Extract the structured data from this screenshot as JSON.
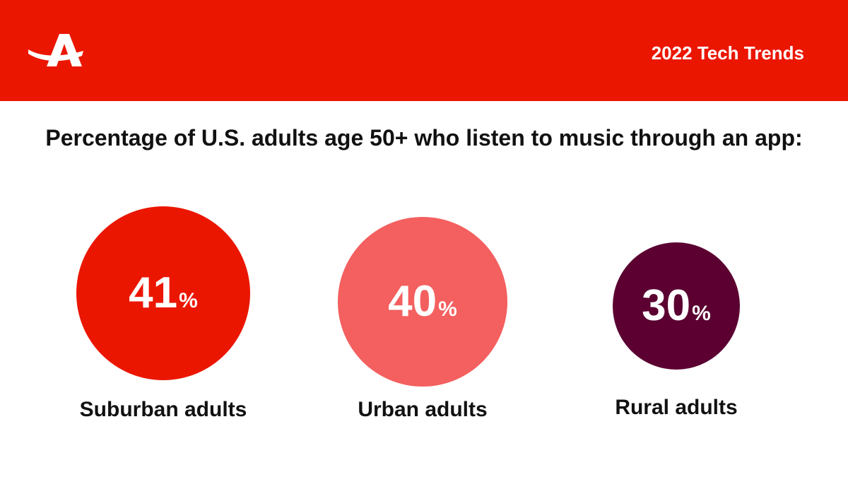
{
  "header": {
    "title": "2022 Tech Trends",
    "logo_icon": "aarp-a-logo"
  },
  "headline": "Percentage of U.S. adults age 50+ who listen to music through an app:",
  "colors": {
    "brand_red": "#eb1600",
    "coral": "#f45f5f",
    "plum": "#5b0031"
  },
  "chart_data": {
    "type": "bar",
    "title": "Percentage of U.S. adults age 50+ who listen to music through an app:",
    "categories": [
      "Suburban adults",
      "Urban adults",
      "Rural adults"
    ],
    "values": [
      41,
      40,
      30
    ],
    "value_labels": [
      "41",
      "40",
      "30"
    ],
    "unit": "%",
    "colors": [
      "#eb1600",
      "#f45f5f",
      "#5b0031"
    ]
  }
}
